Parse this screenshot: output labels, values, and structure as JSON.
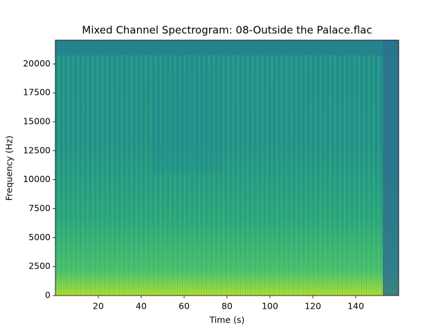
{
  "chart_data": {
    "type": "spectrogram",
    "title": "Mixed Channel Spectrogram: 08-Outside the Palace.flac",
    "x_label": "Time (s)",
    "y_label": "Frequency (Hz)",
    "xlim": [
      0,
      160
    ],
    "xticks": [
      20,
      40,
      60,
      80,
      100,
      120,
      140
    ],
    "ylim": [
      0,
      22050
    ],
    "yticks": [
      0,
      2500,
      5000,
      7500,
      10000,
      12500,
      15000,
      17500,
      20000
    ]
  }
}
